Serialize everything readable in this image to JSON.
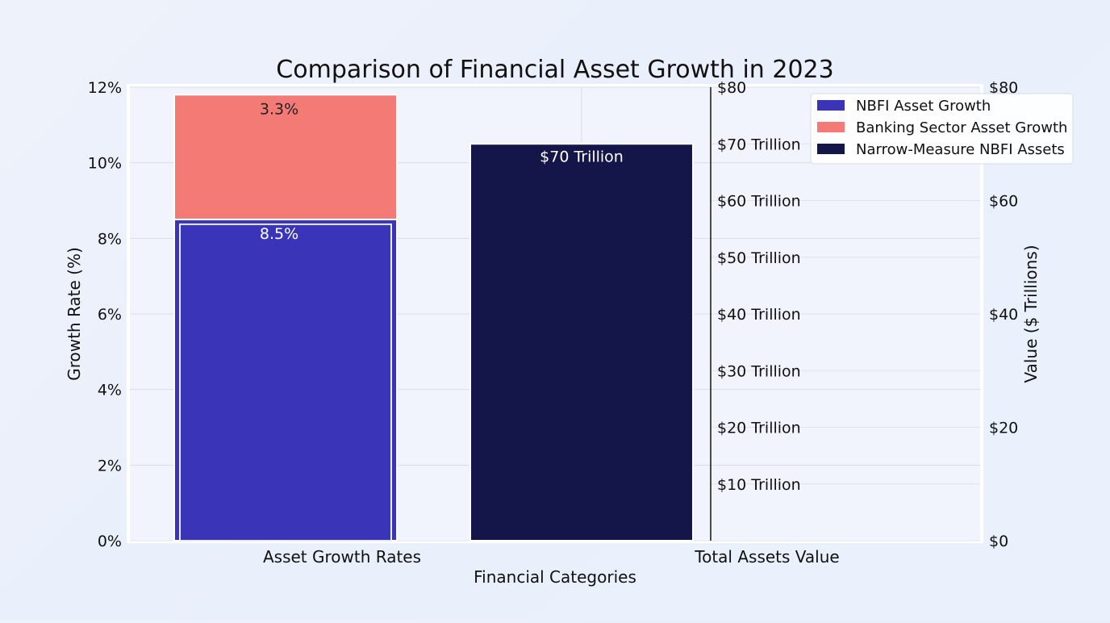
{
  "chart_data": {
    "type": "bar",
    "title": "Comparison of Financial Asset Growth in 2023",
    "xlabel": "Financial Categories",
    "ylabel": "Growth Rate (%)",
    "y2label": "Value ($ Trillions)",
    "categories": [
      "Asset Growth Rates",
      "Total Assets Value"
    ],
    "ylim": [
      0,
      12
    ],
    "y_ticks": [
      0,
      2,
      4,
      6,
      8,
      10,
      12
    ],
    "y_tick_labels": [
      "0%",
      "2%",
      "4%",
      "6%",
      "8%",
      "10%",
      "12%"
    ],
    "y2lim": [
      0,
      80
    ],
    "y2_ticks": [
      0,
      20,
      40,
      60,
      80
    ],
    "y2_tick_labels": [
      "$0",
      "$20",
      "$40",
      "$60",
      "$80"
    ],
    "inner_value_ticks": [
      10,
      20,
      30,
      40,
      50,
      60,
      70,
      80
    ],
    "inner_value_tick_labels": [
      "$10 Trillion",
      "$20 Trillion",
      "$30 Trillion",
      "$40 Trillion",
      "$50 Trillion",
      "$60 Trillion",
      "$70 Trillion",
      "$80"
    ],
    "grid": true,
    "legend_position": "top-right",
    "series": [
      {
        "name": "NBFI Asset Growth",
        "category": "Asset Growth Rates",
        "axis": "left",
        "value": 8.5,
        "label": "8.5%",
        "color": "#3a35b8"
      },
      {
        "name": "Banking Sector Asset Growth",
        "category": "Asset Growth Rates",
        "axis": "left",
        "stacked_on": "NBFI Asset Growth",
        "value": 3.3,
        "label": "3.3%",
        "color": "#f47a76"
      },
      {
        "name": "Narrow-Measure NBFI Assets",
        "category": "Total Assets Value",
        "axis": "right",
        "value": 70,
        "label": "$70 Trillion",
        "color": "#141548"
      }
    ]
  }
}
